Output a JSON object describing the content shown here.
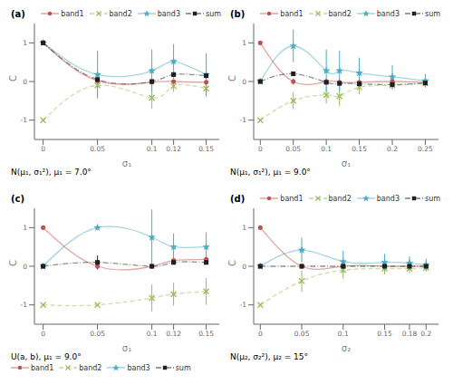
{
  "chart_data": [
    {
      "type": "line",
      "title": "(a)",
      "x_label": "σ₁",
      "y_label": "C",
      "annotations": [
        "N(μ₁, σ₁²), μ₁ = 7.0°"
      ],
      "xlim": [
        -0.008,
        0.162
      ],
      "ylim": [
        -1.5,
        1.5
      ],
      "xticks": [
        0,
        0.05,
        0.1,
        0.12,
        0.15
      ],
      "yticks": [
        -1,
        0,
        1
      ],
      "grid": false,
      "legend": "upper right",
      "x": [
        0,
        0.05,
        0.1,
        0.12,
        0.15
      ],
      "series": [
        {
          "name": "band1",
          "color": "#c0504d",
          "marker": "circle",
          "line_style": "solid",
          "values": [
            1.0,
            0.02,
            -0.02,
            0.0,
            -0.02
          ],
          "yerr": [
            0.0,
            0.05,
            0.05,
            0.05,
            0.05
          ]
        },
        {
          "name": "band2",
          "color": "#9bbb59",
          "marker": "x",
          "line_style": "dashed",
          "values": [
            -1.0,
            -0.1,
            -0.42,
            -0.12,
            -0.18
          ],
          "yerr": [
            0.0,
            0.28,
            0.28,
            0.15,
            0.22
          ]
        },
        {
          "name": "band3",
          "color": "#4bacc6",
          "marker": "star",
          "line_style": "solid",
          "values": [
            1.0,
            0.18,
            0.28,
            0.52,
            0.18
          ],
          "yerr": [
            0.0,
            0.62,
            0.55,
            0.45,
            0.55
          ]
        },
        {
          "name": "sum",
          "color": "#1f1f1f",
          "marker": "square",
          "line_style": "dashdot",
          "values": [
            1.0,
            0.05,
            0.0,
            0.18,
            0.15
          ],
          "yerr": [
            0.0,
            0.0,
            0.0,
            0.0,
            0.0
          ]
        }
      ]
    },
    {
      "type": "line",
      "title": "(b)",
      "x_label": "σ₁",
      "y_label": "C",
      "annotations": [
        "N(μ₁, σ₁²), μ₁ = 9.0°"
      ],
      "xlim": [
        -0.01,
        0.27
      ],
      "ylim": [
        -1.5,
        1.5
      ],
      "xticks": [
        0,
        0.05,
        0.1,
        0.15,
        0.2,
        0.25
      ],
      "yticks": [
        -1,
        0,
        1
      ],
      "grid": false,
      "legend": "upper right",
      "x": [
        0,
        0.05,
        0.1,
        0.12,
        0.15,
        0.2,
        0.25
      ],
      "series": [
        {
          "name": "band1",
          "color": "#c0504d",
          "marker": "circle",
          "line_style": "solid",
          "values": [
            1.0,
            0.0,
            0.0,
            -0.02,
            -0.02,
            0.0,
            -0.02
          ],
          "yerr": [
            0.0,
            0.08,
            0.07,
            0.07,
            0.08,
            0.08,
            0.07
          ]
        },
        {
          "name": "band2",
          "color": "#9bbb59",
          "marker": "x",
          "line_style": "dashed",
          "values": [
            -1.0,
            -0.5,
            -0.35,
            -0.38,
            -0.15,
            -0.1,
            -0.04
          ],
          "yerr": [
            0.0,
            0.22,
            0.22,
            0.25,
            0.18,
            0.12,
            0.08
          ]
        },
        {
          "name": "band3",
          "color": "#4bacc6",
          "marker": "star",
          "line_style": "solid",
          "values": [
            0.0,
            0.92,
            0.28,
            0.28,
            0.22,
            0.12,
            0.02
          ],
          "yerr": [
            0.0,
            0.42,
            0.55,
            0.52,
            0.4,
            0.3,
            0.18
          ]
        },
        {
          "name": "sum",
          "color": "#1f1f1f",
          "marker": "square",
          "line_style": "dashdot",
          "values": [
            0.0,
            0.2,
            -0.02,
            -0.05,
            -0.06,
            -0.08,
            -0.04
          ],
          "yerr": [
            0.0,
            0.0,
            0.0,
            0.0,
            0.0,
            0.0,
            0.0
          ]
        }
      ]
    },
    {
      "type": "line",
      "title": "(c)",
      "x_label": "σ₁",
      "y_label": "C",
      "annotations": [
        "U(a, b), μ₁ = 9.0°"
      ],
      "xlim": [
        -0.008,
        0.162
      ],
      "ylim": [
        -1.5,
        1.5
      ],
      "xticks": [
        0,
        0.05,
        0.1,
        0.12,
        0.15
      ],
      "yticks": [
        -1,
        0,
        1
      ],
      "grid": false,
      "legend": "lower left",
      "x": [
        0,
        0.05,
        0.1,
        0.12,
        0.15
      ],
      "series": [
        {
          "name": "band1",
          "color": "#c0504d",
          "marker": "circle",
          "line_style": "solid",
          "values": [
            1.0,
            0.0,
            0.0,
            0.15,
            0.18
          ],
          "yerr": [
            0.0,
            0.06,
            0.06,
            0.06,
            0.06
          ]
        },
        {
          "name": "band2",
          "color": "#9bbb59",
          "marker": "x",
          "line_style": "dashed",
          "values": [
            -1.0,
            -1.0,
            -0.82,
            -0.72,
            -0.65
          ],
          "yerr": [
            0.0,
            0.0,
            0.35,
            0.3,
            0.35
          ]
        },
        {
          "name": "band3",
          "color": "#4bacc6",
          "marker": "star",
          "line_style": "solid",
          "values": [
            0.0,
            1.0,
            0.75,
            0.5,
            0.5
          ],
          "yerr": [
            0.0,
            0.0,
            0.72,
            0.35,
            0.38
          ]
        },
        {
          "name": "sum",
          "color": "#1f1f1f",
          "marker": "square",
          "line_style": "dashdot",
          "values": [
            0.0,
            0.1,
            0.0,
            0.1,
            0.1
          ],
          "yerr": [
            0.0,
            0.18,
            0.0,
            0.0,
            0.0
          ]
        }
      ]
    },
    {
      "type": "line",
      "title": "(d)",
      "x_label": "σ₂",
      "y_label": "C",
      "annotations": [
        "N(μ₂, σ₂²), μ₂ = 15°"
      ],
      "xlim": [
        -0.008,
        0.215
      ],
      "ylim": [
        -1.5,
        1.5
      ],
      "xticks": [
        0,
        0.05,
        0.1,
        0.15,
        0.18,
        0.2
      ],
      "yticks": [
        -1,
        0,
        1
      ],
      "grid": false,
      "legend": "upper right",
      "x": [
        0,
        0.05,
        0.1,
        0.15,
        0.18,
        0.2
      ],
      "series": [
        {
          "name": "band1",
          "color": "#c0504d",
          "marker": "circle",
          "line_style": "solid",
          "values": [
            1.0,
            0.0,
            0.0,
            0.0,
            0.0,
            0.0
          ],
          "yerr": [
            0.0,
            0.06,
            0.06,
            0.06,
            0.06,
            0.06
          ]
        },
        {
          "name": "band2",
          "color": "#9bbb59",
          "marker": "x",
          "line_style": "dashed",
          "values": [
            -1.0,
            -0.38,
            -0.1,
            -0.06,
            -0.06,
            -0.04
          ],
          "yerr": [
            0.0,
            0.28,
            0.22,
            0.15,
            0.12,
            0.1
          ]
        },
        {
          "name": "band3",
          "color": "#4bacc6",
          "marker": "star",
          "line_style": "solid",
          "values": [
            0.0,
            0.42,
            0.12,
            0.1,
            0.08,
            0.04
          ],
          "yerr": [
            0.0,
            0.32,
            0.28,
            0.22,
            0.18,
            0.15
          ]
        },
        {
          "name": "sum",
          "color": "#1f1f1f",
          "marker": "square",
          "line_style": "dashdot",
          "values": [
            0.0,
            0.0,
            0.0,
            0.0,
            0.0,
            0.0
          ],
          "yerr": [
            0.0,
            0.0,
            0.0,
            0.0,
            0.0,
            0.0
          ]
        }
      ]
    }
  ]
}
